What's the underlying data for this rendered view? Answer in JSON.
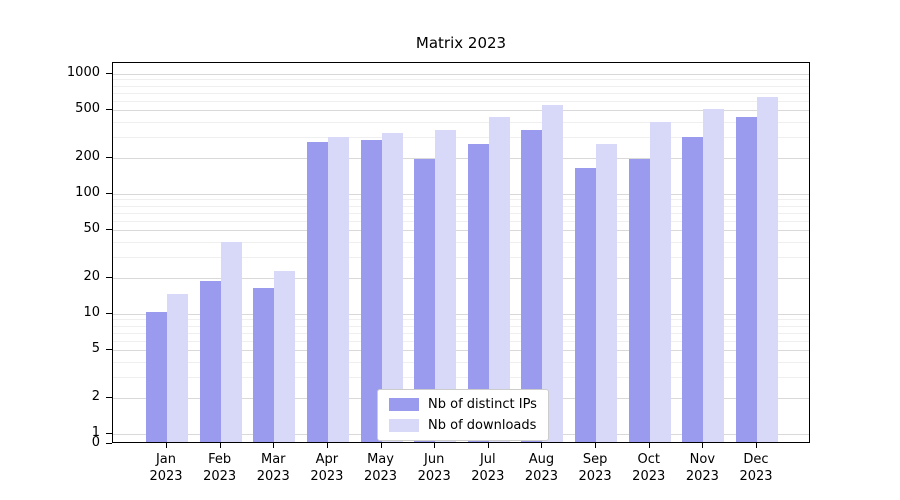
{
  "chart_data": {
    "type": "bar",
    "title": "Matrix 2023",
    "xlabel": "",
    "ylabel": "",
    "year_label": "2023",
    "categories": [
      "Jan",
      "Feb",
      "Mar",
      "Apr",
      "May",
      "Jun",
      "Jul",
      "Aug",
      "Sep",
      "Oct",
      "Nov",
      "Dec"
    ],
    "series": [
      {
        "name": "Nb of distinct IPs",
        "color": "#9a9aee",
        "values": [
          10,
          18,
          16,
          260,
          270,
          190,
          250,
          330,
          160,
          190,
          290,
          420
        ]
      },
      {
        "name": "Nb of downloads",
        "color": "#d8d8f8",
        "values": [
          14,
          38,
          22,
          290,
          310,
          330,
          420,
          530,
          250,
          380,
          490,
          620
        ]
      }
    ],
    "y_axis": {
      "scale": "symlog",
      "ticks": [
        0,
        1,
        2,
        5,
        10,
        20,
        50,
        100,
        200,
        500,
        1000
      ],
      "minor_ticks": [
        3,
        4,
        6,
        7,
        8,
        9,
        30,
        40,
        60,
        70,
        80,
        90,
        300,
        400,
        600,
        700,
        800,
        900
      ],
      "range": [
        0,
        1000
      ]
    },
    "grid": true,
    "legend": {
      "position": "bottom-center-inside"
    }
  }
}
